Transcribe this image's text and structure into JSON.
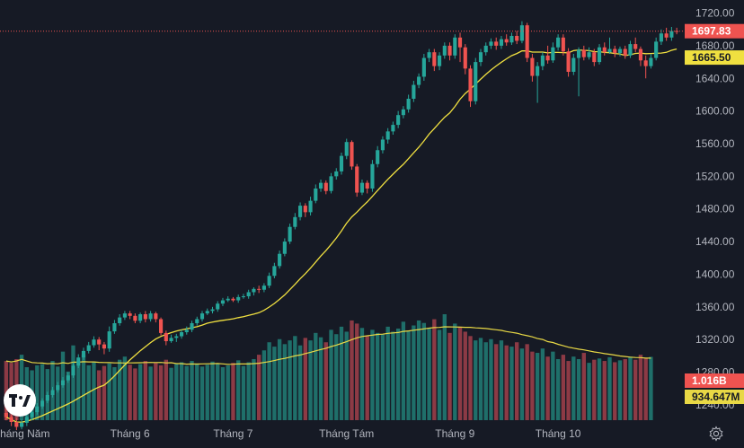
{
  "chart_data": {
    "type": "candlestick",
    "instrument_note": "Daily price candles with volume histogram and moving averages",
    "colors": {
      "up": "#26a69a",
      "down": "#ef5350",
      "vol_up": "#1f6f6a",
      "vol_down": "#8c3a45",
      "ma_price": "#f0e040",
      "ma_volume": "#e8d845",
      "background": "#161a25",
      "axis_text": "#b2b5be"
    },
    "x_labels": [
      "Tháng Năm",
      "Tháng 6",
      "Tháng 7",
      "Tháng Tám",
      "Tháng 9",
      "Tháng 10"
    ],
    "x_label_index": [
      3,
      24,
      44,
      66,
      87,
      107
    ],
    "y_axis": {
      "min": 1230,
      "max": 1725,
      "ticks": [
        "1720.00",
        "1680.00",
        "1640.00",
        "1600.00",
        "1560.00",
        "1520.00",
        "1480.00",
        "1440.00",
        "1400.00",
        "1360.00",
        "1320.00",
        "1280.00",
        "1240.00"
      ]
    },
    "price_labels": {
      "last": "1697.83",
      "ma": "1665.50"
    },
    "volume_labels": {
      "last": "1.016B",
      "ma": "934.647M"
    },
    "candles": [
      [
        1230,
        1225,
        1235,
        1221
      ],
      [
        1225,
        1219,
        1228,
        1214
      ],
      [
        1219,
        1213,
        1224,
        1209
      ],
      [
        1213,
        1218,
        1222,
        1210
      ],
      [
        1218,
        1225,
        1228,
        1214
      ],
      [
        1225,
        1231,
        1235,
        1221
      ],
      [
        1231,
        1238,
        1242,
        1228
      ],
      [
        1238,
        1245,
        1248,
        1235
      ],
      [
        1245,
        1252,
        1256,
        1242
      ],
      [
        1252,
        1258,
        1262,
        1249
      ],
      [
        1258,
        1264,
        1268,
        1255
      ],
      [
        1264,
        1270,
        1274,
        1261
      ],
      [
        1270,
        1276,
        1280,
        1267
      ],
      [
        1276,
        1288,
        1292,
        1273
      ],
      [
        1288,
        1298,
        1302,
        1285
      ],
      [
        1298,
        1306,
        1310,
        1295
      ],
      [
        1306,
        1313,
        1317,
        1303
      ],
      [
        1313,
        1320,
        1324,
        1310
      ],
      [
        1320,
        1314,
        1323,
        1307
      ],
      [
        1314,
        1309,
        1317,
        1302
      ],
      [
        1309,
        1330,
        1336,
        1305
      ],
      [
        1330,
        1340,
        1344,
        1327
      ],
      [
        1340,
        1347,
        1351,
        1337
      ],
      [
        1347,
        1352,
        1355,
        1344
      ],
      [
        1352,
        1349,
        1355,
        1345
      ],
      [
        1349,
        1343,
        1352,
        1340
      ],
      [
        1343,
        1351,
        1353,
        1340
      ],
      [
        1351,
        1345,
        1355,
        1341
      ],
      [
        1345,
        1352,
        1355,
        1342
      ],
      [
        1352,
        1345,
        1354,
        1341
      ],
      [
        1345,
        1328,
        1347,
        1325
      ],
      [
        1328,
        1318,
        1331,
        1313
      ],
      [
        1318,
        1322,
        1326,
        1316
      ],
      [
        1322,
        1324,
        1327,
        1317
      ],
      [
        1324,
        1329,
        1332,
        1321
      ],
      [
        1329,
        1332,
        1336,
        1326
      ],
      [
        1332,
        1340,
        1343,
        1329
      ],
      [
        1340,
        1345,
        1348,
        1337
      ],
      [
        1345,
        1352,
        1355,
        1342
      ],
      [
        1352,
        1355,
        1358,
        1350
      ],
      [
        1355,
        1357,
        1360,
        1352
      ],
      [
        1357,
        1364,
        1367,
        1354
      ],
      [
        1364,
        1368,
        1371,
        1361
      ],
      [
        1368,
        1370,
        1373,
        1366
      ],
      [
        1370,
        1368,
        1372,
        1366
      ],
      [
        1368,
        1372,
        1375,
        1365
      ],
      [
        1372,
        1373,
        1376,
        1370
      ],
      [
        1373,
        1378,
        1381,
        1370
      ],
      [
        1378,
        1382,
        1384,
        1374
      ],
      [
        1382,
        1381,
        1386,
        1377
      ],
      [
        1381,
        1386,
        1389,
        1378
      ],
      [
        1386,
        1398,
        1402,
        1383
      ],
      [
        1398,
        1410,
        1414,
        1395
      ],
      [
        1410,
        1425,
        1429,
        1407
      ],
      [
        1425,
        1440,
        1444,
        1422
      ],
      [
        1440,
        1458,
        1462,
        1437
      ],
      [
        1458,
        1470,
        1475,
        1455
      ],
      [
        1470,
        1484,
        1488,
        1466
      ],
      [
        1484,
        1476,
        1487,
        1470
      ],
      [
        1476,
        1490,
        1495,
        1472
      ],
      [
        1490,
        1505,
        1510,
        1487
      ],
      [
        1505,
        1512,
        1516,
        1501
      ],
      [
        1512,
        1502,
        1515,
        1498
      ],
      [
        1502,
        1520,
        1524,
        1499
      ],
      [
        1520,
        1526,
        1530,
        1516
      ],
      [
        1526,
        1545,
        1549,
        1522
      ],
      [
        1545,
        1562,
        1566,
        1541
      ],
      [
        1562,
        1532,
        1564,
        1528
      ],
      [
        1532,
        1500,
        1535,
        1495
      ],
      [
        1500,
        1512,
        1516,
        1497
      ],
      [
        1512,
        1505,
        1515,
        1499
      ],
      [
        1505,
        1535,
        1540,
        1501
      ],
      [
        1535,
        1552,
        1557,
        1531
      ],
      [
        1552,
        1565,
        1569,
        1548
      ],
      [
        1565,
        1575,
        1579,
        1560
      ],
      [
        1575,
        1583,
        1587,
        1571
      ],
      [
        1583,
        1595,
        1600,
        1579
      ],
      [
        1595,
        1602,
        1606,
        1591
      ],
      [
        1602,
        1615,
        1620,
        1598
      ],
      [
        1615,
        1632,
        1637,
        1611
      ],
      [
        1632,
        1642,
        1646,
        1628
      ],
      [
        1642,
        1665,
        1670,
        1637
      ],
      [
        1665,
        1672,
        1676,
        1660
      ],
      [
        1672,
        1655,
        1676,
        1649
      ],
      [
        1655,
        1668,
        1672,
        1650
      ],
      [
        1668,
        1680,
        1684,
        1664
      ],
      [
        1680,
        1668,
        1684,
        1662
      ],
      [
        1668,
        1690,
        1694,
        1664
      ],
      [
        1690,
        1678,
        1696,
        1660
      ],
      [
        1678,
        1652,
        1682,
        1645
      ],
      [
        1652,
        1612,
        1656,
        1605
      ],
      [
        1612,
        1660,
        1665,
        1608
      ],
      [
        1660,
        1672,
        1676,
        1655
      ],
      [
        1672,
        1680,
        1684,
        1668
      ],
      [
        1680,
        1685,
        1689,
        1676
      ],
      [
        1685,
        1680,
        1690,
        1675
      ],
      [
        1680,
        1688,
        1692,
        1676
      ],
      [
        1688,
        1684,
        1694,
        1680
      ],
      [
        1684,
        1692,
        1696,
        1681
      ],
      [
        1692,
        1686,
        1698,
        1682
      ],
      [
        1686,
        1705,
        1710,
        1683
      ],
      [
        1705,
        1665,
        1708,
        1660
      ],
      [
        1665,
        1643,
        1670,
        1636
      ],
      [
        1643,
        1655,
        1660,
        1610
      ],
      [
        1655,
        1668,
        1672,
        1650
      ],
      [
        1668,
        1662,
        1680,
        1658
      ],
      [
        1662,
        1678,
        1684,
        1659
      ],
      [
        1678,
        1690,
        1694,
        1674
      ],
      [
        1690,
        1673,
        1694,
        1668
      ],
      [
        1673,
        1648,
        1677,
        1642
      ],
      [
        1648,
        1665,
        1670,
        1644
      ],
      [
        1665,
        1675,
        1678,
        1618
      ],
      [
        1675,
        1666,
        1680,
        1662
      ],
      [
        1666,
        1672,
        1678,
        1663
      ],
      [
        1672,
        1660,
        1676,
        1655
      ],
      [
        1660,
        1678,
        1682,
        1657
      ],
      [
        1678,
        1672,
        1684,
        1668
      ],
      [
        1672,
        1676,
        1690,
        1670
      ],
      [
        1676,
        1671,
        1680,
        1666
      ],
      [
        1671,
        1676,
        1679,
        1667
      ],
      [
        1676,
        1668,
        1680,
        1664
      ],
      [
        1668,
        1682,
        1686,
        1665
      ],
      [
        1682,
        1676,
        1690,
        1672
      ],
      [
        1676,
        1662,
        1679,
        1655
      ],
      [
        1662,
        1655,
        1668,
        1640
      ],
      [
        1655,
        1665,
        1670,
        1652
      ],
      [
        1665,
        1685,
        1690,
        1662
      ],
      [
        1685,
        1695,
        1700,
        1681
      ],
      [
        1695,
        1690,
        1702,
        1686
      ],
      [
        1690,
        1698,
        1703,
        1686
      ],
      [
        1698,
        1697.83,
        1702,
        1694
      ]
    ],
    "volume": [
      0.95,
      0.92,
      0.98,
      1.05,
      0.85,
      0.8,
      0.88,
      0.9,
      0.82,
      0.95,
      0.86,
      1.1,
      0.78,
      1.2,
      0.92,
      1.05,
      0.88,
      0.94,
      0.8,
      0.87,
      0.91,
      0.85,
      0.97,
      1.02,
      0.89,
      0.83,
      0.9,
      0.95,
      0.86,
      0.92,
      0.88,
      0.97,
      0.84,
      0.9,
      0.93,
      0.87,
      0.95,
      0.91,
      0.86,
      0.89,
      0.94,
      0.9,
      0.85,
      0.88,
      0.92,
      0.96,
      0.87,
      0.93,
      0.98,
      1.05,
      1.12,
      1.25,
      1.18,
      1.3,
      1.22,
      1.28,
      1.35,
      1.2,
      1.32,
      1.28,
      1.4,
      1.33,
      1.25,
      1.45,
      1.38,
      1.5,
      1.42,
      1.6,
      1.55,
      1.48,
      1.35,
      1.45,
      1.4,
      1.38,
      1.5,
      1.42,
      1.47,
      1.58,
      1.44,
      1.52,
      1.6,
      1.56,
      1.48,
      1.62,
      1.45,
      1.7,
      1.4,
      1.55,
      1.5,
      1.42,
      1.35,
      1.28,
      1.32,
      1.25,
      1.3,
      1.22,
      1.28,
      1.2,
      1.18,
      1.25,
      1.15,
      1.22,
      1.1,
      1.08,
      1.15,
      1.02,
      1.1,
      0.98,
      1.05,
      0.95,
      1.02,
      0.98,
      1.08,
      0.92,
      0.97,
      0.99,
      0.95,
      1.01,
      0.93,
      0.96,
      0.98,
      1.02,
      0.97,
      1.05,
      0.99,
      1.016
    ],
    "ma_volume_note": "moving average of volume",
    "ma_period": 20
  }
}
